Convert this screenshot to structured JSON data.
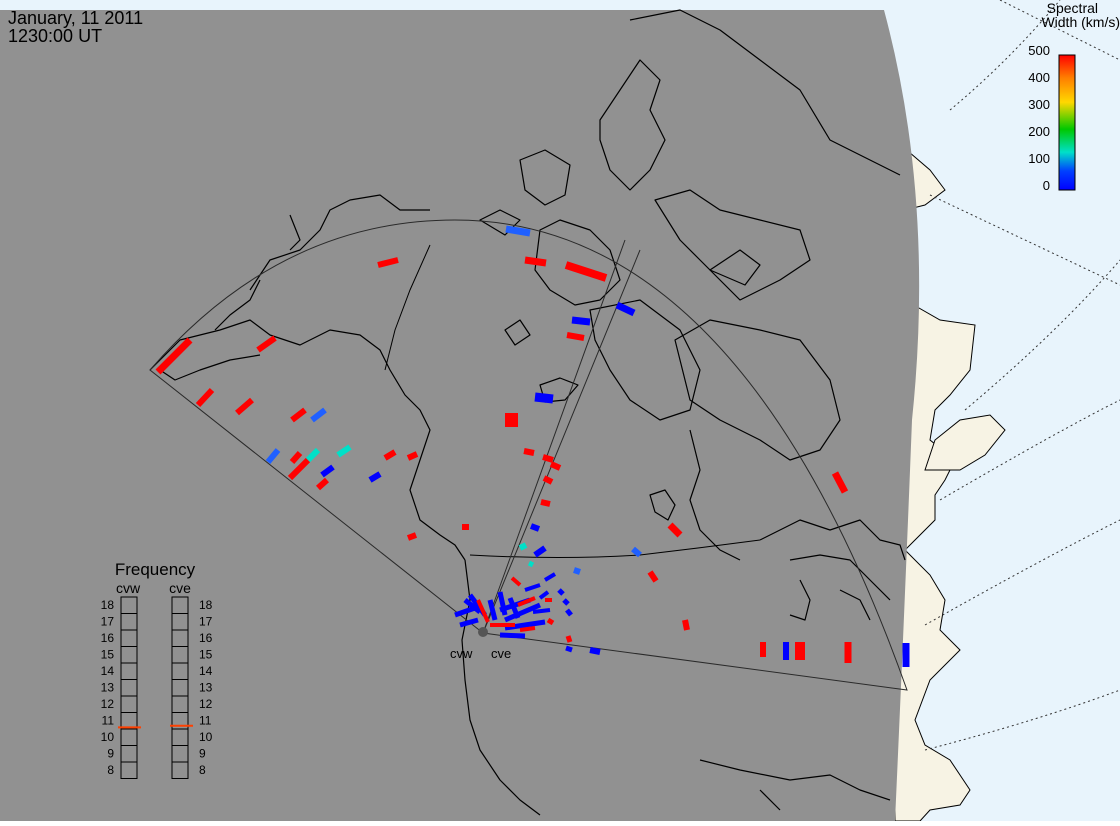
{
  "header": {
    "date": "January, 11 2011",
    "time": "1230:00 UT"
  },
  "colorbar": {
    "title_line1": "Spectral",
    "title_line2": "Width (km/s)",
    "ticks": [
      "500",
      "400",
      "300",
      "200",
      "100",
      "0"
    ],
    "stops": [
      "#ff0000",
      "#ff7f00",
      "#ffd800",
      "#00c800",
      "#00e0c8",
      "#0040ff",
      "#0000ff"
    ]
  },
  "radars": {
    "west_label": "cvw",
    "east_label": "cve"
  },
  "frequency_panel": {
    "title": "Frequency",
    "col_left": "cvw",
    "col_right": "cve",
    "levels": [
      "18",
      "17",
      "16",
      "15",
      "14",
      "13",
      "12",
      "11",
      "10",
      "9",
      "8"
    ],
    "cvw_value_mhz": 10.6,
    "cve_value_mhz": 10.7,
    "indicator_color": "#ff4000"
  },
  "colors": {
    "map_gray": "#919191",
    "daylight": "#e8f4fc",
    "land_day": "#f7f3e4",
    "high_width": "#ff0000",
    "low_width": "#0000ff",
    "mid_width": "#00e0c8"
  }
}
